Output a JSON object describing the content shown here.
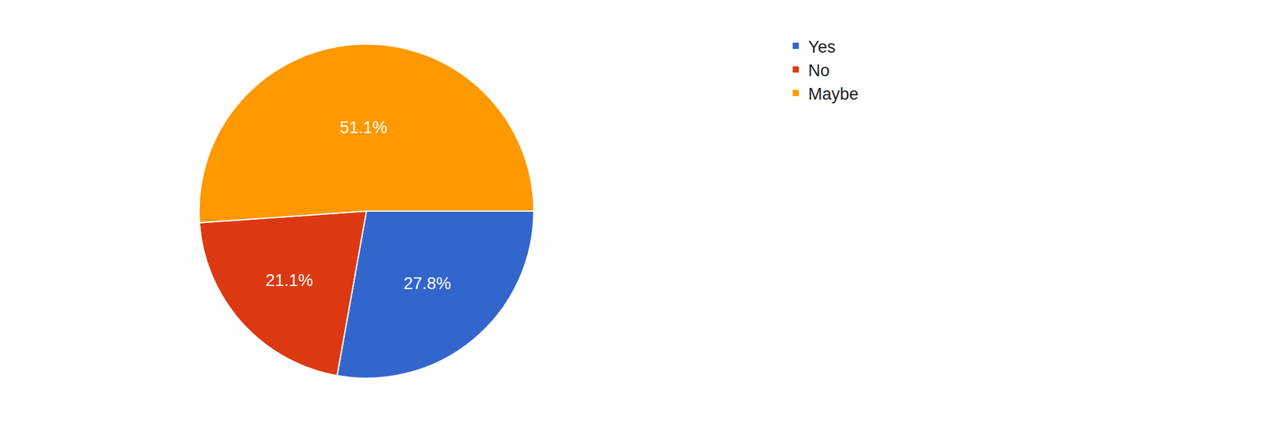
{
  "chart_data": {
    "type": "pie",
    "categories": [
      "Yes",
      "No",
      "Maybe"
    ],
    "values": [
      27.8,
      21.1,
      51.1
    ],
    "value_labels": [
      "27.8%",
      "21.1%",
      "51.1%"
    ],
    "colors": [
      "#3366cc",
      "#dc3912",
      "#ff9900"
    ],
    "data_labels": true,
    "legend": "top right"
  }
}
